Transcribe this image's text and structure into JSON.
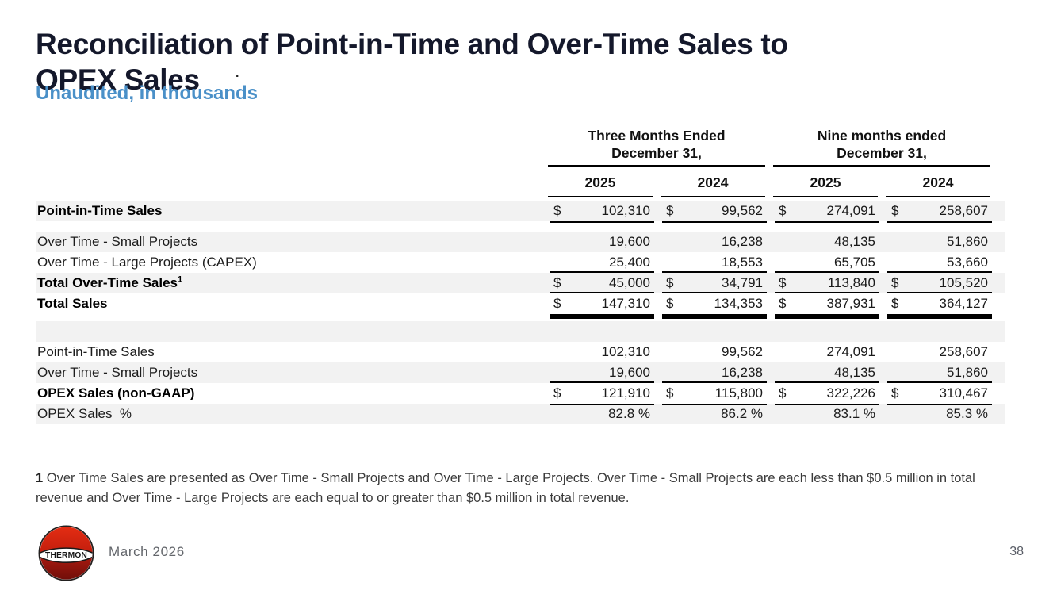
{
  "page": {
    "title_lines": [
      "Reconciliation of Point-in-Time and Over-Time Sales to",
      "OPEX Sales"
    ],
    "stray_dot": ".",
    "subtitle": "Unaudited, in thousands"
  },
  "table": {
    "groups": [
      {
        "line1": "Three Months Ended",
        "line2": "December 31,"
      },
      {
        "line1": "Nine months ended",
        "line2": "December 31,"
      }
    ],
    "year_headers": [
      "2025",
      "2024",
      "2025",
      "2024"
    ],
    "rows": [
      {
        "label": "Point-in-Time Sales",
        "bold": true,
        "shaded": true,
        "dollar": true,
        "values": [
          "102,310",
          "99,562",
          "274,091",
          "258,607"
        ],
        "rule_bottom": "single"
      },
      {
        "spacer": 13
      },
      {
        "label": "Over Time - Small Projects",
        "shaded": true,
        "values": [
          "19,600",
          "16,238",
          "48,135",
          "51,860"
        ]
      },
      {
        "label": "Over Time - Large Projects (CAPEX)",
        "values": [
          "25,400",
          "18,553",
          "65,705",
          "53,660"
        ]
      },
      {
        "label": "Total Over-Time Sales",
        "sup": "1",
        "bold": true,
        "shaded": true,
        "dollar": true,
        "values": [
          "45,000",
          "34,791",
          "113,840",
          "105,520"
        ],
        "rule_top": true
      },
      {
        "label": "Total Sales",
        "bold": true,
        "dollar": true,
        "values": [
          "147,310",
          "134,353",
          "387,931",
          "364,127"
        ],
        "rule_top": true,
        "rule_bottom": "double"
      },
      {
        "spacer": 9
      },
      {
        "blank": true,
        "shaded": true
      },
      {
        "label": "Point-in-Time Sales",
        "values": [
          "102,310",
          "99,562",
          "274,091",
          "258,607"
        ]
      },
      {
        "label": "Over Time - Small Projects",
        "shaded": true,
        "values": [
          "19,600",
          "16,238",
          "48,135",
          "51,860"
        ]
      },
      {
        "label": "OPEX Sales (non-GAAP)",
        "bold": true,
        "dollar": true,
        "values": [
          "121,910",
          "115,800",
          "322,226",
          "310,467"
        ],
        "rule_top": true,
        "rule_bottom": "single"
      },
      {
        "label": "OPEX Sales  %",
        "shaded": true,
        "suffix": " %",
        "values": [
          "82.8",
          "86.2",
          "83.1",
          "85.3"
        ]
      }
    ]
  },
  "footnote": {
    "marker": "1",
    "text": "Over Time Sales are presented as Over Time - Small Projects and Over Time - Large Projects. Over Time - Small Projects are each less than $0.5 million in total revenue and Over Time - Large Projects are each equal to or greater than $0.5 million in total revenue."
  },
  "footer": {
    "logo_text": "THERMON",
    "date": "March 2026",
    "page_number": "38"
  },
  "colors": {
    "title_navy": "#14182b",
    "accent_blue": "#4a90c8",
    "band_gray": "#f2f2f2",
    "rule_black": "#000000",
    "logo_red_top": "#da2711",
    "logo_red_bottom": "#6f0e09",
    "footer_gray": "#63666b"
  }
}
